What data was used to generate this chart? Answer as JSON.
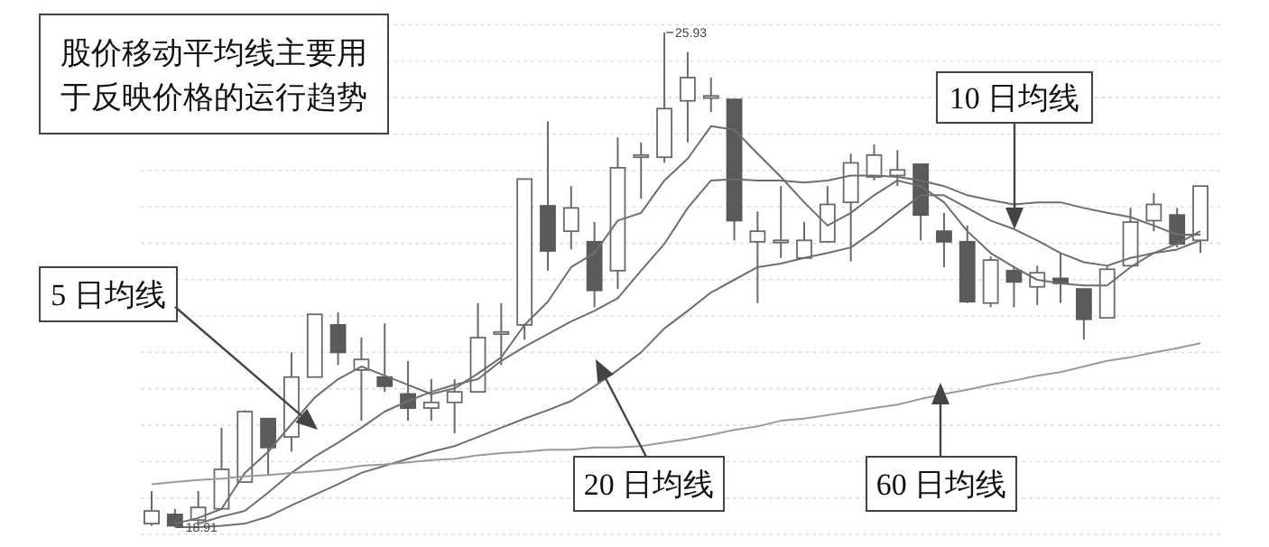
{
  "chart_data": {
    "type": "candlestick",
    "title": "股价移动平均线主要用于反映价格的运行趋势",
    "categories": [
      null,
      null,
      null,
      null,
      null,
      null,
      null,
      null,
      null,
      null,
      null,
      null,
      null,
      null,
      null,
      null,
      null,
      null,
      null,
      null,
      null,
      null,
      null,
      null,
      null,
      null,
      null,
      null,
      null,
      null,
      null,
      null,
      null,
      null,
      null,
      null,
      null,
      null,
      null,
      null,
      null,
      null,
      null,
      null,
      null,
      null
    ],
    "ohlc": [
      [
        18.96,
        19.42,
        18.93,
        19.14
      ],
      [
        19.09,
        19.17,
        18.91,
        18.93
      ],
      [
        19.01,
        19.42,
        18.96,
        19.19
      ],
      [
        19.17,
        20.32,
        19.17,
        19.73
      ],
      [
        19.55,
        20.57,
        19.55,
        20.55
      ],
      [
        20.45,
        20.45,
        19.65,
        20.04
      ],
      [
        20.19,
        21.39,
        19.98,
        21.04
      ],
      [
        21.04,
        21.93,
        21.04,
        21.93
      ],
      [
        21.78,
        21.96,
        21.21,
        21.39
      ],
      [
        21.14,
        21.6,
        20.42,
        21.29
      ],
      [
        21.04,
        21.8,
        20.83,
        20.91
      ],
      [
        20.8,
        21.27,
        20.42,
        20.6
      ],
      [
        20.6,
        21.01,
        20.42,
        20.68
      ],
      [
        20.68,
        21.01,
        20.24,
        20.83
      ],
      [
        20.83,
        22.09,
        20.83,
        21.6
      ],
      [
        21.68,
        22.09,
        21.21,
        21.68
      ],
      [
        21.78,
        23.85,
        21.57,
        23.85
      ],
      [
        23.47,
        24.67,
        22.55,
        22.83
      ],
      [
        23.11,
        23.75,
        22.85,
        23.44
      ],
      [
        22.96,
        23.24,
        22.03,
        22.27
      ],
      [
        22.55,
        24.44,
        22.29,
        24.01
      ],
      [
        24.19,
        24.37,
        23.57,
        24.19
      ],
      [
        24.16,
        25.93,
        24.08,
        24.85
      ],
      [
        24.96,
        25.65,
        24.37,
        25.29
      ],
      [
        25.03,
        25.29,
        24.8,
        25.03
      ],
      [
        24.98,
        24.98,
        22.98,
        23.26
      ],
      [
        22.96,
        23.39,
        22.09,
        23.11
      ],
      [
        22.98,
        23.75,
        22.73,
        22.98
      ],
      [
        22.73,
        23.24,
        22.73,
        22.98
      ],
      [
        22.96,
        23.75,
        22.96,
        23.49
      ],
      [
        23.52,
        24.21,
        22.68,
        24.08
      ],
      [
        23.88,
        24.34,
        23.83,
        24.19
      ],
      [
        23.9,
        24.26,
        23.75,
        23.98
      ],
      [
        24.06,
        24.06,
        22.98,
        23.34
      ],
      [
        23.11,
        23.37,
        22.6,
        22.96
      ],
      [
        22.96,
        23.19,
        22.09,
        22.11
      ],
      [
        22.09,
        22.75,
        22.03,
        22.7
      ],
      [
        22.55,
        22.62,
        22.03,
        22.39
      ],
      [
        22.32,
        22.62,
        22.06,
        22.52
      ],
      [
        22.44,
        22.8,
        22.09,
        22.37
      ],
      [
        22.29,
        22.29,
        21.57,
        21.86
      ],
      [
        21.88,
        22.62,
        21.88,
        22.57
      ],
      [
        22.62,
        23.44,
        22.62,
        23.24
      ],
      [
        23.26,
        23.65,
        23.11,
        23.49
      ],
      [
        23.34,
        23.44,
        22.88,
        22.93
      ],
      [
        22.98,
        23.75,
        22.8,
        23.75
      ]
    ],
    "colors": [
      "#ffffff",
      "#5a5a5a",
      "#ffffff",
      "#ffffff",
      "#ffffff",
      "#5a5a5a",
      "#ffffff",
      "#ffffff",
      "#5a5a5a",
      "#ffffff",
      "#5a5a5a",
      "#5a5a5a",
      "#ffffff",
      "#ffffff",
      "#ffffff",
      "#ffffff",
      "#ffffff",
      "#5a5a5a",
      "#ffffff",
      "#5a5a5a",
      "#ffffff",
      "#ffffff",
      "#ffffff",
      "#ffffff",
      "#ffffff",
      "#5a5a5a",
      "#ffffff",
      "#ffffff",
      "#ffffff",
      "#ffffff",
      "#ffffff",
      "#ffffff",
      "#ffffff",
      "#5a5a5a",
      "#5a5a5a",
      "#5a5a5a",
      "#ffffff",
      "#5a5a5a",
      "#ffffff",
      "#5a5a5a",
      "#5a5a5a",
      "#ffffff",
      "#ffffff",
      "#ffffff",
      "#5a5a5a",
      "#ffffff"
    ],
    "series": [
      {
        "type": "line",
        "color": "#6e6e6e",
        "values": [
          null,
          18.96,
          19.04,
          19.17,
          19.68,
          19.98,
          20.37,
          20.75,
          21.01,
          21.19,
          21.06,
          20.93,
          20.8,
          20.88,
          21.09,
          21.32,
          21.78,
          22.11,
          22.6,
          22.8,
          23.26,
          23.37,
          23.83,
          24.14,
          24.6,
          24.55,
          24.21,
          23.88,
          23.52,
          23.19,
          23.37,
          23.62,
          23.83,
          23.75,
          23.52,
          23.11,
          22.8,
          22.6,
          22.42,
          22.37,
          22.34,
          22.34,
          22.6,
          22.8,
          22.93,
          23.11
        ]
      },
      {
        "type": "line",
        "color": "#6e6e6e",
        "values": [
          null,
          null,
          18.96,
          19.06,
          19.14,
          19.4,
          19.68,
          19.91,
          20.11,
          20.32,
          20.55,
          20.7,
          20.83,
          20.93,
          21.01,
          21.27,
          21.47,
          21.65,
          21.83,
          21.98,
          22.16,
          22.55,
          22.93,
          23.44,
          23.83,
          23.85,
          23.83,
          23.83,
          23.8,
          23.83,
          23.9,
          23.9,
          23.88,
          23.83,
          23.75,
          23.62,
          23.55,
          23.49,
          23.52,
          23.52,
          23.44,
          23.37,
          23.31,
          23.19,
          23.06,
          23.06
        ]
      },
      {
        "type": "line",
        "color": "#6e6e6e",
        "values": [
          null,
          18.91,
          18.91,
          18.93,
          18.96,
          19.06,
          19.22,
          19.37,
          19.52,
          19.68,
          19.78,
          19.88,
          19.98,
          20.06,
          20.19,
          20.32,
          20.45,
          20.57,
          20.7,
          20.91,
          21.14,
          21.39,
          21.73,
          21.98,
          22.24,
          22.42,
          22.6,
          22.65,
          22.73,
          22.8,
          22.88,
          23.11,
          23.37,
          23.62,
          23.62,
          23.44,
          23.26,
          23.14,
          22.98,
          22.8,
          22.67,
          22.62,
          22.73,
          22.8,
          22.85,
          22.98
        ]
      },
      {
        "type": "line",
        "color": "#9a9a9a",
        "values": [
          19.52,
          19.55,
          19.58,
          19.6,
          19.63,
          19.65,
          19.68,
          19.7,
          19.73,
          19.78,
          19.8,
          19.83,
          19.86,
          19.88,
          19.93,
          19.96,
          19.98,
          20.01,
          20.01,
          20.04,
          20.04,
          20.06,
          20.11,
          20.16,
          20.22,
          20.29,
          20.34,
          20.42,
          20.45,
          20.5,
          20.55,
          20.6,
          20.65,
          20.73,
          20.8,
          20.86,
          20.93,
          20.99,
          21.06,
          21.11,
          21.19,
          21.27,
          21.32,
          21.39,
          21.45,
          21.52
        ]
      }
    ],
    "grid": "y",
    "annotations": [
      "25.93",
      "18.91",
      "5 日均线",
      "10 日均线",
      "20 日均线",
      "60 日均线"
    ]
  }
}
